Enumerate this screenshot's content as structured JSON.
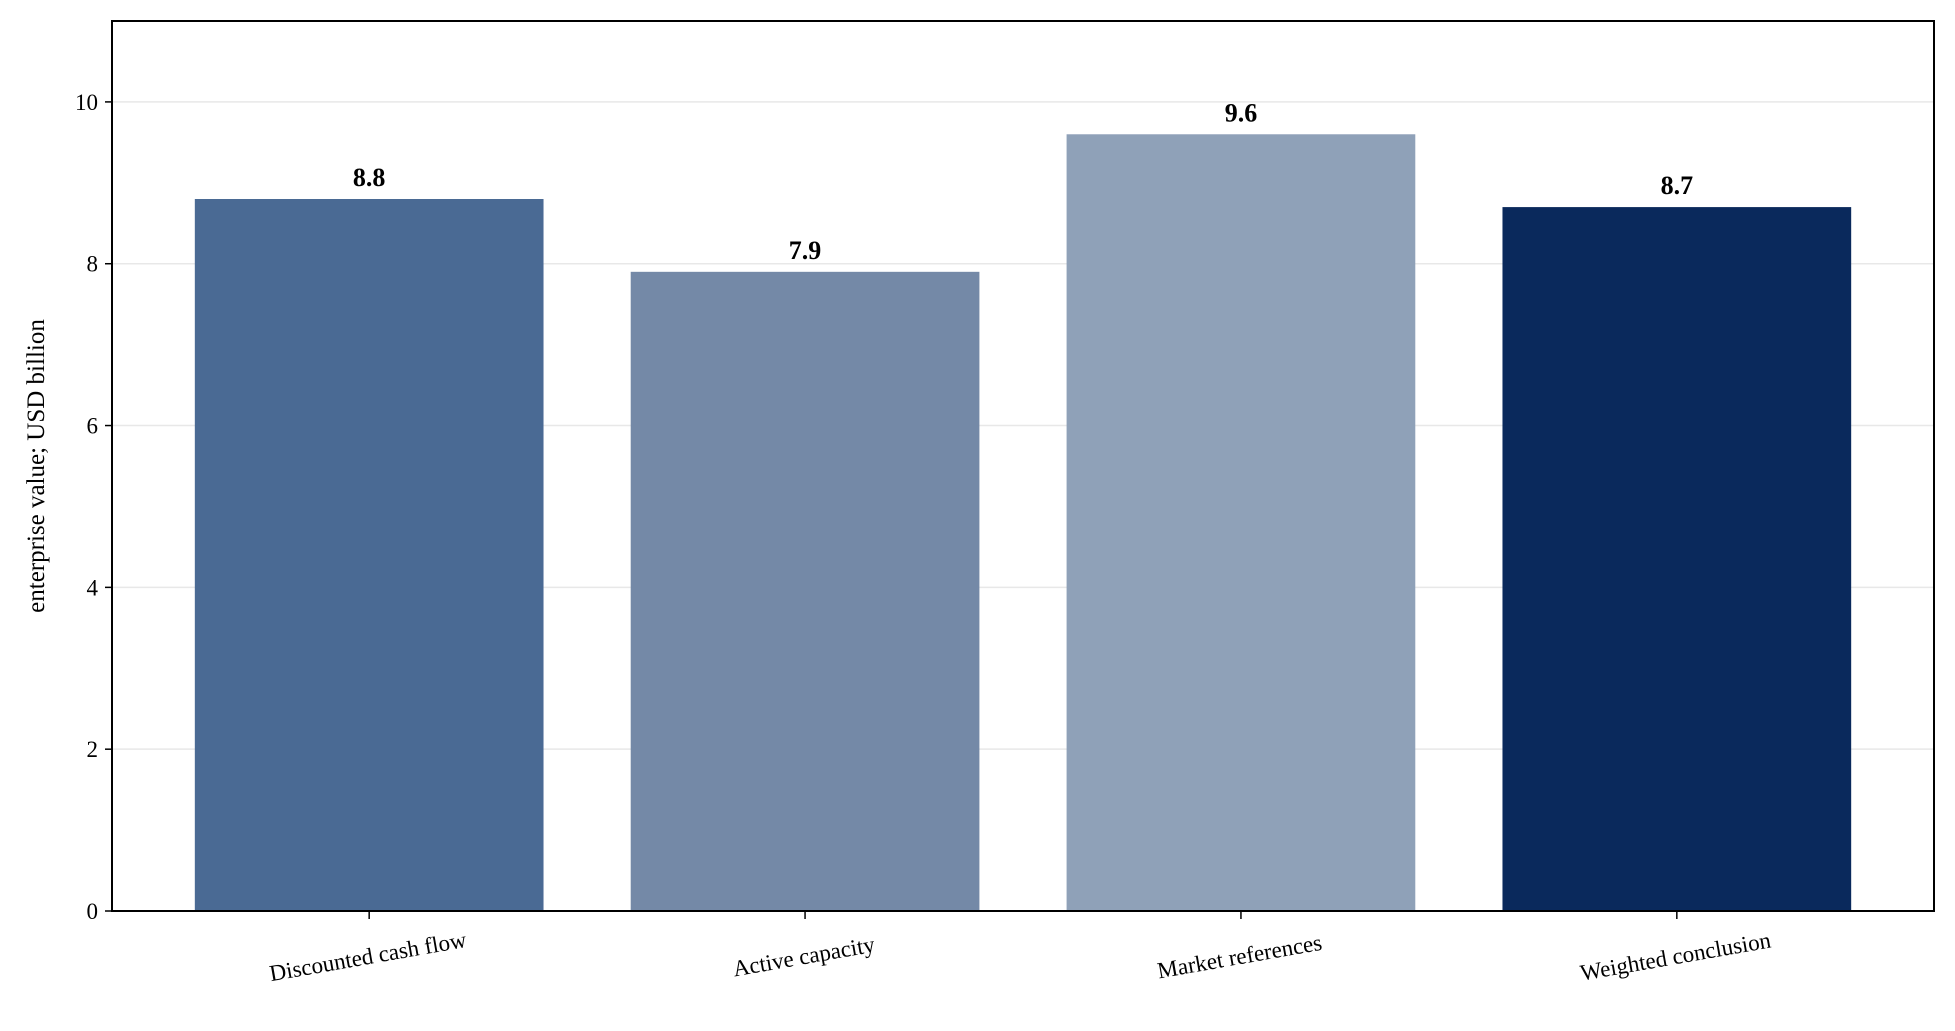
{
  "chart_data": {
    "type": "bar",
    "y_label": "enterprise value; USD billion",
    "categories": [
      "Discounted cash flow",
      "Active capacity",
      "Market references",
      "Weighted conclusion"
    ],
    "values": [
      8.8,
      7.9,
      9.6,
      8.7
    ],
    "colors": [
      "#4a6a94",
      "#7489a7",
      "#8fa1b8",
      "#0a295c"
    ],
    "ylim": [
      0,
      11
    ],
    "yticks": [
      0,
      2,
      4,
      6,
      8,
      10
    ],
    "grid": true
  }
}
